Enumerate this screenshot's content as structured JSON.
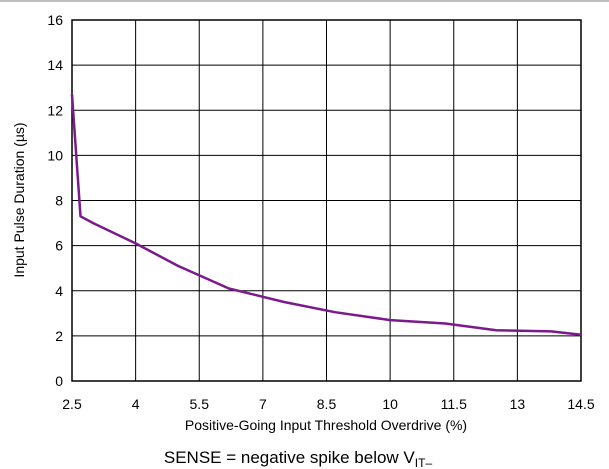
{
  "chart_data": {
    "type": "line",
    "xlabel": "Positive-Going Input Threshold Overdrive (%)",
    "ylabel": "Input Pulse Duration (µs)",
    "xlim": [
      2.5,
      14.5
    ],
    "ylim": [
      0,
      16
    ],
    "x_ticks": [
      "2.5",
      "4",
      "5.5",
      "7",
      "8.5",
      "10",
      "11.5",
      "13",
      "14.5"
    ],
    "y_ticks": [
      "0",
      "2",
      "4",
      "6",
      "8",
      "10",
      "12",
      "14",
      "16"
    ],
    "grid": true,
    "series": [
      {
        "color": "#7b1a8c",
        "x": [
          2.5,
          2.7,
          3.0,
          4.0,
          5.0,
          6.2,
          7.5,
          8.7,
          10.0,
          11.3,
          12.5,
          13.8,
          14.5
        ],
        "y": [
          12.7,
          7.3,
          7.0,
          6.1,
          5.1,
          4.1,
          3.5,
          3.05,
          2.7,
          2.55,
          2.25,
          2.2,
          2.05
        ]
      }
    ],
    "caption": {
      "text": "SENSE = negative spike below V",
      "subscript": "IT–"
    }
  }
}
